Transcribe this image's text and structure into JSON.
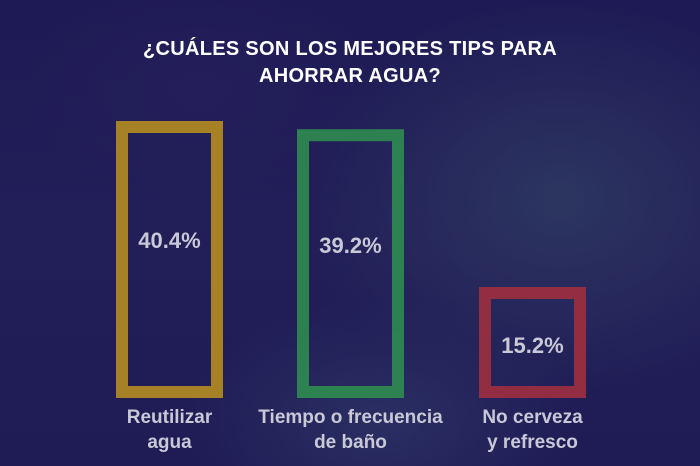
{
  "chart_data": {
    "type": "bar",
    "title": "¿CUÁLES SON LOS MEJORES TIPS PARA AHORRAR AGUA?",
    "title_lines": [
      "¿CUÁLES SON LOS MEJORES TIPS PARA",
      "AHORRAR AGUA?"
    ],
    "categories": [
      "Reutilizar agua",
      "Tiempo o frecuencia de baño",
      "No cerveza y refresco"
    ],
    "category_lines": [
      [
        "Reutilizar",
        "agua"
      ],
      [
        "Tiempo o frecuencia",
        "de baño"
      ],
      [
        "No cerveza",
        "y refresco"
      ]
    ],
    "values": [
      40.4,
      39.2,
      15.2
    ],
    "data_labels": [
      "40.4%",
      "39.2%",
      "15.2%"
    ],
    "colors": [
      "#b38a22",
      "#2f8a50",
      "#9c2f40"
    ],
    "unit": "%",
    "grid": false,
    "legend": "none",
    "ylim": [
      0,
      40.4
    ]
  }
}
